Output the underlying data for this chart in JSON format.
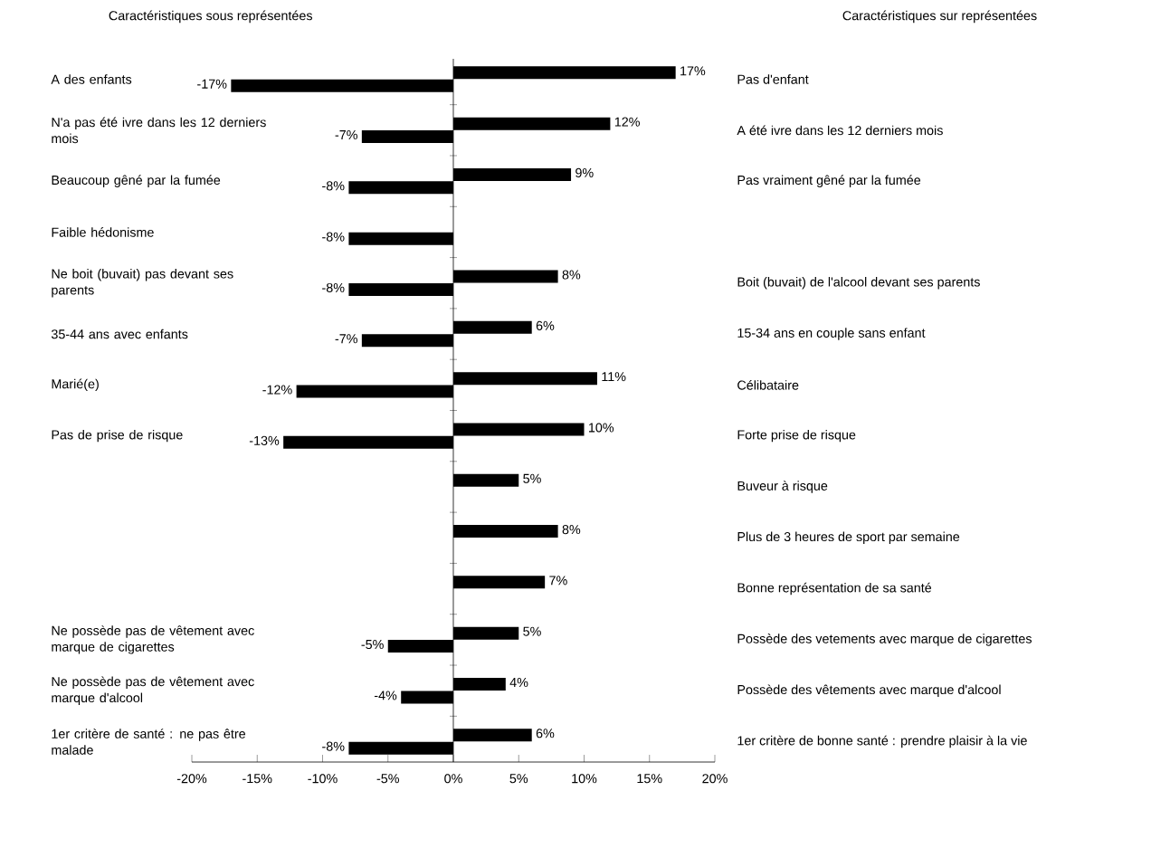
{
  "chart_data": {
    "type": "bar",
    "orientation": "horizontal",
    "categories": [
      "A des enfants",
      "N'a pas été ivre dans les 12 derniers mois",
      "Beaucoup gêné par la fumée",
      "Faible hédonisme",
      "Ne boit (buvait) pas devant ses parents",
      "35-44 ans avec enfants",
      "Marié(e)",
      "Pas de prise de risque",
      null,
      null,
      null,
      "Ne possède pas de vêtement avec marque de cigarettes",
      "Ne possède pas de vêtement avec marque d'alcool",
      "1er critère de santé : ne pas être malade"
    ],
    "y2_categories": [
      "Pas d'enfant",
      "A été ivre dans les 12 derniers mois",
      "Pas vraiment gêné par la fumée",
      null,
      "Boit (buvait) de l'alcool devant ses parents",
      "15-34 ans en couple sans enfant",
      "Célibataire",
      "Forte prise de risque",
      "Buveur à risque",
      "Plus de 3 heures de sport par semaine",
      "Bonne représentation de sa santé",
      "Possède des vetements avec marque de cigarettes",
      "Possède des vêtements avec marque d'alcool",
      "1er critère de bonne santé : prendre plaisir à la vie"
    ],
    "series": [
      {
        "color": "#000000",
        "values": [
          17,
          12,
          9,
          null,
          8,
          6,
          11,
          10,
          5,
          8,
          7,
          5,
          4,
          6
        ],
        "value_labels": [
          "17%",
          "12%",
          "9%",
          null,
          "8%",
          "6%",
          "11%",
          "10%",
          "5%",
          "8%",
          "7%",
          "5%",
          "4%",
          "6%"
        ]
      },
      {
        "color": "#000000",
        "values": [
          -17,
          -7,
          -8,
          -8,
          -8,
          -7,
          -12,
          -13,
          null,
          null,
          null,
          -5,
          -4,
          -8
        ],
        "value_labels": [
          "-17%",
          "-7%",
          "-8%",
          "-8%",
          "-8%",
          "-7%",
          "-12%",
          "-13%",
          null,
          null,
          null,
          "-5%",
          "-4%",
          "-8%"
        ]
      }
    ],
    "xlim": [
      -20,
      20
    ],
    "xticks": [
      {
        "value": -20,
        "label": "-20%"
      },
      {
        "value": -15,
        "label": "-15%"
      },
      {
        "value": -10,
        "label": "-10%"
      },
      {
        "value": -5,
        "label": "-5%"
      },
      {
        "value": 0,
        "label": "0%"
      },
      {
        "value": 5,
        "label": "5%"
      },
      {
        "value": 10,
        "label": "10%"
      },
      {
        "value": 15,
        "label": "15%"
      },
      {
        "value": 20,
        "label": "20%"
      }
    ],
    "annotations": [
      "Caractéristiques sous représentées",
      "Caractéristiques sur représentées"
    ]
  }
}
